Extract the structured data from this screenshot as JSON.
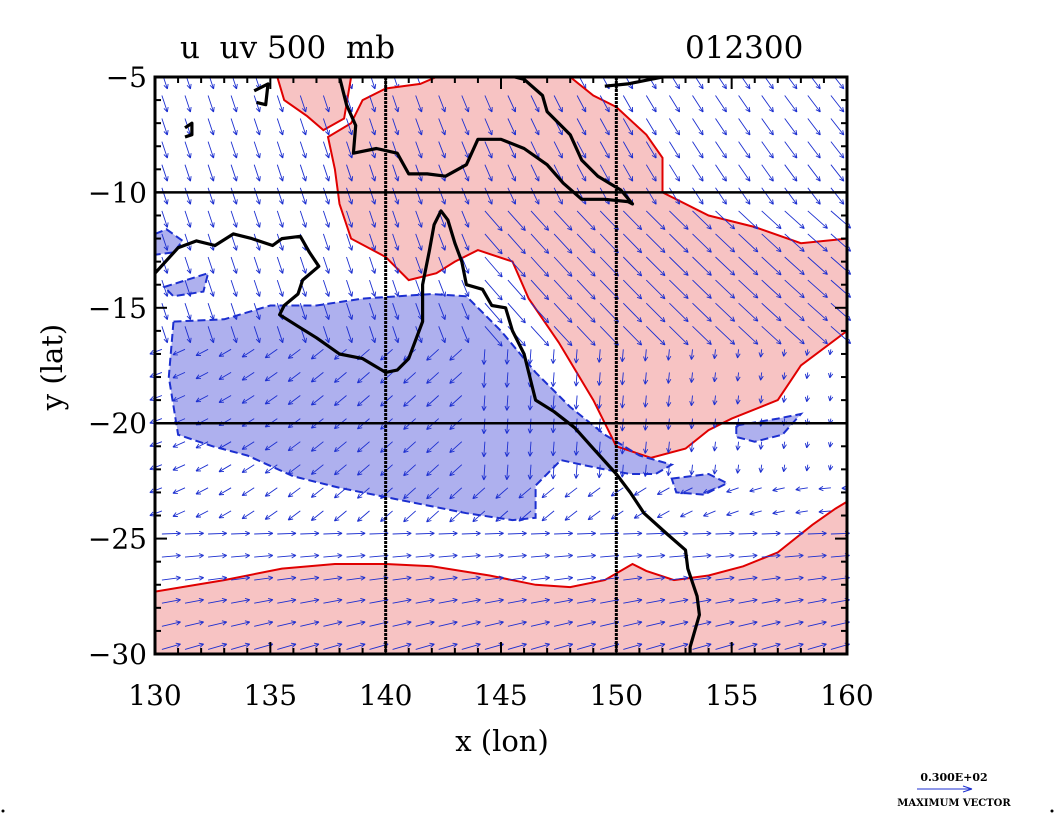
{
  "chart_data": {
    "type": "contour-vector-map",
    "title_left": "u  uv 500  mb",
    "title_right": "012300",
    "xlabel": "x (lon)",
    "ylabel": "y (lat)",
    "xlim": [
      130,
      160
    ],
    "ylim": [
      -30,
      -5
    ],
    "xticks": [
      "130",
      "135",
      "140",
      "145",
      "150",
      "155",
      "160"
    ],
    "yticks": [
      "-5",
      "-10",
      "-15",
      "-20",
      "-25",
      "-30"
    ],
    "grid_lon": [
      140,
      150
    ],
    "grid_lat": [
      -10,
      -20
    ],
    "legend": {
      "magnitude_label": "0.300E+02",
      "vector_label": "MAXIMUM VECTOR"
    },
    "colors": {
      "positive_fill": "#f7c3c3",
      "positive_line": "#e00000",
      "negative_fill": "#aeb0ee",
      "negative_line": "#1c2fd0",
      "vector": "#1c2fd0",
      "coast": "#000000"
    },
    "regions": {
      "positive": [
        [
          [
            142.2,
            -5
          ],
          [
            148,
            -5
          ],
          [
            149,
            -5.8
          ],
          [
            150,
            -6.3
          ],
          [
            151.3,
            -7.5
          ],
          [
            152,
            -8.5
          ],
          [
            152,
            -10
          ],
          [
            154,
            -11
          ],
          [
            156,
            -11.5
          ],
          [
            158,
            -12.2
          ],
          [
            160,
            -12
          ],
          [
            160,
            -16
          ],
          [
            158,
            -17.5
          ],
          [
            157,
            -19
          ],
          [
            155,
            -19.8
          ],
          [
            154,
            -20.3
          ],
          [
            153,
            -21.1
          ],
          [
            151.5,
            -21.5
          ],
          [
            150,
            -21
          ],
          [
            149,
            -19
          ],
          [
            147.5,
            -16.5
          ],
          [
            146.2,
            -14.6
          ],
          [
            145.5,
            -13
          ],
          [
            144,
            -12.5
          ],
          [
            143,
            -13
          ],
          [
            142.2,
            -13.5
          ],
          [
            141,
            -13.8
          ],
          [
            140,
            -12.8
          ],
          [
            138.5,
            -12
          ],
          [
            138,
            -10.5
          ],
          [
            137.8,
            -9
          ],
          [
            137.5,
            -7.6
          ],
          [
            138.5,
            -7
          ],
          [
            139,
            -6
          ],
          [
            140,
            -5.5
          ],
          [
            141.5,
            -5.3
          ]
        ],
        [
          [
            135.3,
            -5
          ],
          [
            138.5,
            -5
          ],
          [
            138.2,
            -6.8
          ],
          [
            137.3,
            -7.3
          ],
          [
            136.6,
            -6.7
          ],
          [
            135.6,
            -6
          ]
        ],
        [
          [
            130,
            -27.3
          ],
          [
            133,
            -26.8
          ],
          [
            135.5,
            -26.3
          ],
          [
            137.8,
            -26.1
          ],
          [
            140,
            -26.1
          ],
          [
            142,
            -26.2
          ],
          [
            144.5,
            -26.6
          ],
          [
            146.5,
            -27
          ],
          [
            148,
            -27.1
          ],
          [
            149.5,
            -26.8
          ],
          [
            150.7,
            -26.1
          ],
          [
            151.3,
            -26.4
          ],
          [
            152.5,
            -26.8
          ],
          [
            154,
            -26.6
          ],
          [
            155.5,
            -26.2
          ],
          [
            157,
            -25.6
          ],
          [
            158.5,
            -24.4
          ],
          [
            159.5,
            -23.7
          ],
          [
            160,
            -23.4
          ],
          [
            160,
            -30
          ],
          [
            130,
            -30
          ]
        ]
      ],
      "negative": [
        [
          [
            130.8,
            -15.6
          ],
          [
            133,
            -15.5
          ],
          [
            135,
            -14.9
          ],
          [
            137,
            -14.9
          ],
          [
            139,
            -14.6
          ],
          [
            140.5,
            -14.5
          ],
          [
            142,
            -14.4
          ],
          [
            143.5,
            -14.5
          ],
          [
            145,
            -16
          ],
          [
            146.5,
            -17.8
          ],
          [
            148,
            -19.3
          ],
          [
            149.5,
            -20.5
          ],
          [
            151,
            -21.4
          ],
          [
            152.4,
            -21.8
          ],
          [
            151.7,
            -22.2
          ],
          [
            150.6,
            -22.2
          ],
          [
            149.5,
            -22
          ],
          [
            148.5,
            -21.8
          ],
          [
            147.6,
            -21.6
          ],
          [
            146.5,
            -22.7
          ],
          [
            146.5,
            -24.1
          ],
          [
            145.5,
            -24.2
          ],
          [
            143.5,
            -23.9
          ],
          [
            141,
            -23.4
          ],
          [
            138,
            -22.8
          ],
          [
            136,
            -22.3
          ],
          [
            134,
            -21.4
          ],
          [
            132.5,
            -21
          ],
          [
            131,
            -20.5
          ],
          [
            130.6,
            -18
          ]
        ],
        [
          [
            130,
            -11.8
          ],
          [
            130.5,
            -11.6
          ],
          [
            131.2,
            -12.1
          ],
          [
            130.8,
            -12.6
          ],
          [
            130,
            -12.7
          ]
        ],
        [
          [
            130.4,
            -14.1
          ],
          [
            132.3,
            -13.5
          ],
          [
            132.1,
            -14.3
          ],
          [
            130.8,
            -14.5
          ]
        ],
        [
          [
            155.2,
            -20.1
          ],
          [
            157,
            -19.8
          ],
          [
            158,
            -19.6
          ],
          [
            157.2,
            -20.5
          ],
          [
            156,
            -20.8
          ],
          [
            155.2,
            -20.6
          ]
        ],
        [
          [
            152.4,
            -22.4
          ],
          [
            154,
            -22.2
          ],
          [
            154.8,
            -22.6
          ],
          [
            153.8,
            -23.1
          ],
          [
            152.6,
            -23
          ]
        ]
      ]
    },
    "coastlines": [
      [
        [
          130,
          -13.5
        ],
        [
          131,
          -12.4
        ],
        [
          131.8,
          -12.1
        ],
        [
          132.6,
          -12.3
        ],
        [
          133.4,
          -11.8
        ],
        [
          134.2,
          -12
        ],
        [
          135.1,
          -12.3
        ],
        [
          135.5,
          -12
        ],
        [
          136.3,
          -11.9
        ],
        [
          136.7,
          -12.6
        ],
        [
          137.1,
          -13.2
        ],
        [
          136.4,
          -13.8
        ],
        [
          136.2,
          -14.4
        ],
        [
          135.6,
          -14.9
        ],
        [
          135.4,
          -15.3
        ],
        [
          136.2,
          -15.8
        ],
        [
          137,
          -16.3
        ],
        [
          138,
          -17
        ],
        [
          139,
          -17.2
        ],
        [
          139.5,
          -17.5
        ],
        [
          140,
          -17.8
        ],
        [
          140.5,
          -17.7
        ],
        [
          141,
          -17.2
        ],
        [
          141.6,
          -15.6
        ],
        [
          141.6,
          -14
        ],
        [
          141.9,
          -12.5
        ],
        [
          142.1,
          -11.4
        ],
        [
          142.4,
          -10.8
        ],
        [
          142.7,
          -11.2
        ],
        [
          143,
          -12.2
        ],
        [
          143.3,
          -13
        ],
        [
          143.5,
          -14
        ],
        [
          144.2,
          -14.2
        ],
        [
          144.6,
          -14.9
        ],
        [
          145.2,
          -15
        ],
        [
          145.5,
          -16
        ],
        [
          146,
          -17
        ],
        [
          146.3,
          -18.2
        ],
        [
          146.5,
          -19
        ],
        [
          147.3,
          -19.5
        ],
        [
          148.2,
          -20.2
        ],
        [
          149,
          -21.1
        ],
        [
          150,
          -22.2
        ],
        [
          150.6,
          -23
        ],
        [
          151.2,
          -23.9
        ],
        [
          152.2,
          -24.8
        ],
        [
          153,
          -25.5
        ],
        [
          153.1,
          -26.3
        ],
        [
          153.5,
          -27.5
        ],
        [
          153.6,
          -28.3
        ],
        [
          153.2,
          -29.7
        ],
        [
          153.2,
          -30
        ]
      ],
      [
        [
          138,
          -5
        ],
        [
          138.3,
          -6.2
        ],
        [
          138.7,
          -7.1
        ],
        [
          138.6,
          -8.3
        ],
        [
          139.6,
          -8.1
        ],
        [
          140.5,
          -8.3
        ],
        [
          141,
          -9.2
        ],
        [
          141.8,
          -9.2
        ],
        [
          142.6,
          -9.3
        ],
        [
          143.5,
          -8.8
        ],
        [
          144,
          -7.7
        ],
        [
          145,
          -7.7
        ],
        [
          146,
          -8.1
        ],
        [
          147,
          -8.8
        ],
        [
          147.7,
          -9.6
        ],
        [
          148.5,
          -10.3
        ],
        [
          149.5,
          -10.3
        ],
        [
          150.5,
          -10.4
        ],
        [
          150.7,
          -10.5
        ],
        [
          150.2,
          -9.9
        ],
        [
          149.2,
          -9.3
        ],
        [
          148.5,
          -8.6
        ],
        [
          148,
          -7.5
        ],
        [
          147,
          -6.5
        ],
        [
          146.8,
          -5.8
        ],
        [
          146,
          -5.1
        ],
        [
          145.6,
          -5
        ]
      ],
      [
        [
          149.5,
          -5.4
        ],
        [
          150.5,
          -5.3
        ],
        [
          151.5,
          -5.1
        ],
        [
          152,
          -5
        ]
      ],
      [
        [
          134.3,
          -5.6
        ],
        [
          134.9,
          -5.3
        ],
        [
          134.8,
          -6.2
        ],
        [
          134.4,
          -6.1
        ]
      ],
      [
        [
          131.3,
          -7.2
        ],
        [
          131.6,
          -7
        ],
        [
          131.6,
          -7.5
        ],
        [
          131.3,
          -7.6
        ]
      ]
    ]
  }
}
